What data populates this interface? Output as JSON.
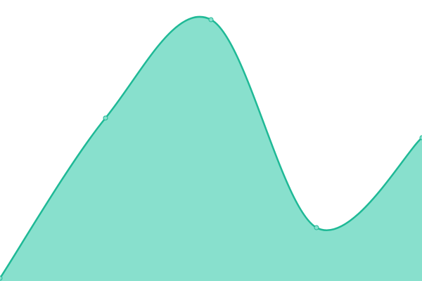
{
  "chart_data": {
    "type": "area",
    "categories": [
      null,
      null,
      null,
      null,
      null
    ],
    "series": [
      {
        "color": "#1fb996",
        "fill": "#88e0cd",
        "values": [
          1,
          58,
          93,
          19,
          51
        ]
      }
    ],
    "ylim": [
      0,
      100
    ],
    "smooth": true,
    "markers": true
  }
}
